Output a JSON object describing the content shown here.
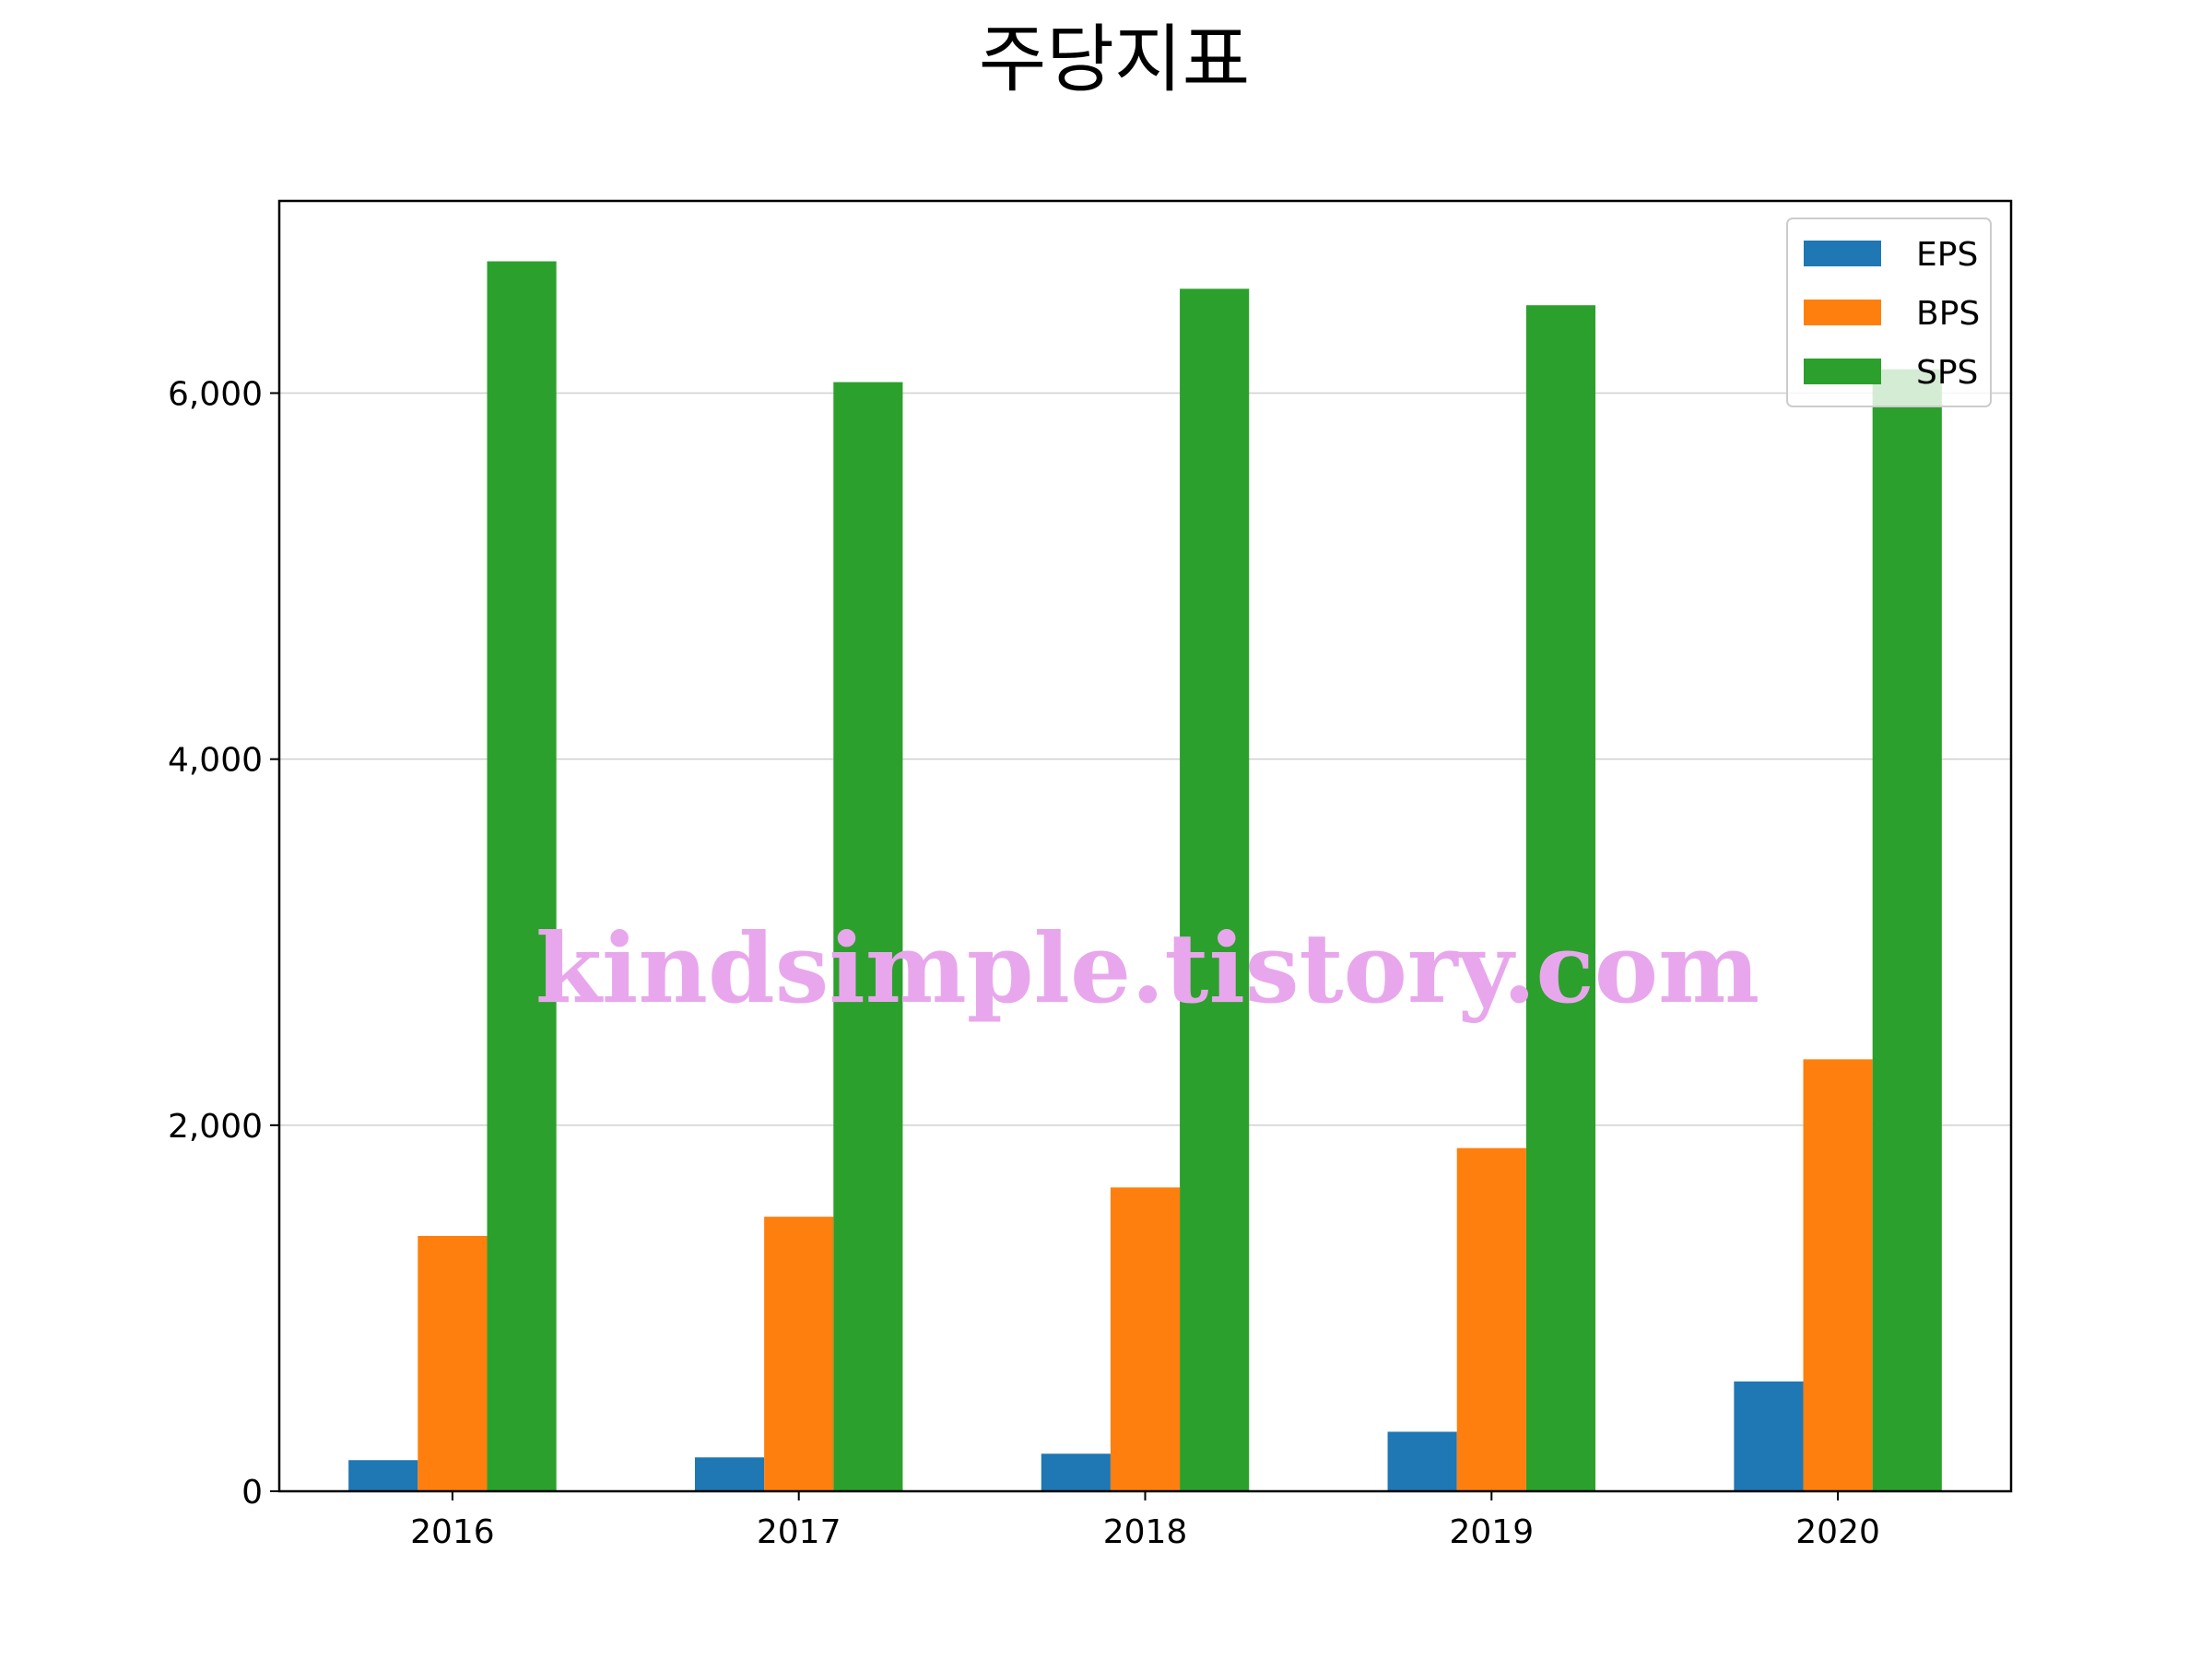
{
  "chart_data": {
    "type": "bar",
    "title": "주당지표",
    "xlabel": "",
    "ylabel": "",
    "categories": [
      "2016",
      "2017",
      "2018",
      "2019",
      "2020"
    ],
    "series": [
      {
        "name": "EPS",
        "color": "#1f77b4",
        "values": [
          170,
          185,
          205,
          325,
          600
        ]
      },
      {
        "name": "BPS",
        "color": "#ff7f0e",
        "values": [
          1395,
          1500,
          1660,
          1875,
          2360
        ]
      },
      {
        "name": "SPS",
        "color": "#2ca02c",
        "values": [
          6720,
          6060,
          6570,
          6480,
          6130
        ]
      }
    ],
    "ylim": [
      0,
      7050
    ],
    "yticks": [
      0,
      2000,
      4000,
      6000
    ],
    "ytick_labels": [
      "0",
      "2,000",
      "4,000",
      "6,000"
    ],
    "grid": "horizontal",
    "legend_position": "top-right",
    "watermark": "kindsimple.tistory.com"
  }
}
